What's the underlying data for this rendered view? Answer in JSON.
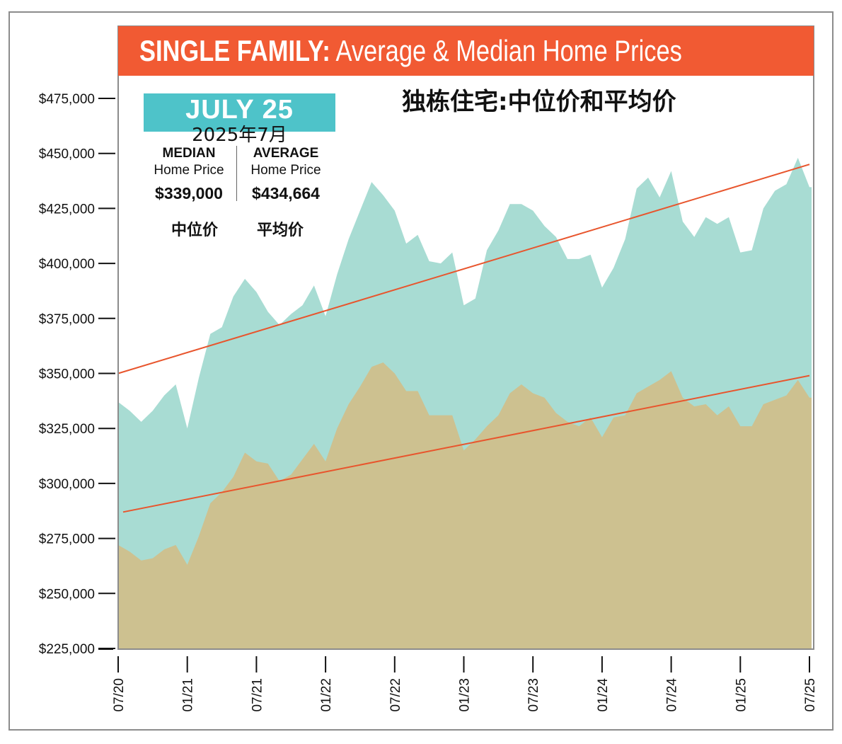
{
  "header": {
    "title_bold": "SINGLE FAMILY:",
    "title_rest": " Average & Median Home Prices",
    "title_cn": "独栋住宅:中位价和平均价"
  },
  "badge": {
    "month": "JULY 25",
    "month_cn": "2025年7月"
  },
  "stats": {
    "median_label": "MEDIAN",
    "median_sub": "Home Price",
    "median_value": "$339,000",
    "median_cn": "中位价",
    "average_label": "AVERAGE",
    "average_sub": "Home Price",
    "average_value": "$434,664",
    "average_cn": "平均价"
  },
  "colors": {
    "title_band": "#f15a33",
    "badge": "#4ec3c9",
    "average_fill": "#a8dcd3",
    "median_fill": "#cdc190",
    "trend_line": "#e8552d"
  },
  "chart_data": {
    "type": "area",
    "title": "SINGLE FAMILY: Average & Median Home Prices",
    "ylim": [
      225000,
      475000
    ],
    "y_ticks": [
      {
        "value": 225000,
        "label": "$225,000"
      },
      {
        "value": 250000,
        "label": "$250,000"
      },
      {
        "value": 275000,
        "label": "$275,000"
      },
      {
        "value": 300000,
        "label": "$300,000"
      },
      {
        "value": 325000,
        "label": "$325,000"
      },
      {
        "value": 350000,
        "label": "$350,000"
      },
      {
        "value": 375000,
        "label": "$375,000"
      },
      {
        "value": 400000,
        "label": "$400,000"
      },
      {
        "value": 425000,
        "label": "$425,000"
      },
      {
        "value": 450000,
        "label": "$450,000"
      },
      {
        "value": 475000,
        "label": "$475,000"
      }
    ],
    "x_ticks": [
      {
        "index": 0,
        "label": "07/20"
      },
      {
        "index": 6,
        "label": "01/21"
      },
      {
        "index": 12,
        "label": "07/21"
      },
      {
        "index": 18,
        "label": "01/22"
      },
      {
        "index": 24,
        "label": "07/22"
      },
      {
        "index": 30,
        "label": "01/23"
      },
      {
        "index": 36,
        "label": "07/23"
      },
      {
        "index": 42,
        "label": "01/24"
      },
      {
        "index": 48,
        "label": "07/24"
      },
      {
        "index": 54,
        "label": "01/25"
      },
      {
        "index": 60,
        "label": "07/25"
      }
    ],
    "series": [
      {
        "name": "Average Home Price",
        "values": [
          337000,
          333000,
          328000,
          333000,
          340000,
          345000,
          325000,
          348000,
          368000,
          371000,
          385000,
          393000,
          387000,
          378000,
          372000,
          377000,
          381000,
          390000,
          376000,
          395000,
          411000,
          424000,
          437000,
          431000,
          424000,
          409000,
          413000,
          401000,
          400000,
          405000,
          381000,
          384000,
          406000,
          415000,
          427000,
          427000,
          424000,
          417000,
          412000,
          402000,
          402000,
          404000,
          389000,
          398000,
          411000,
          434000,
          439000,
          430000,
          442000,
          419000,
          412000,
          421000,
          418000,
          421000,
          405000,
          406000,
          425000,
          433000,
          436000,
          448000,
          434664
        ]
      },
      {
        "name": "Median Home Price",
        "values": [
          272000,
          269000,
          265000,
          266000,
          270000,
          272000,
          263000,
          276000,
          291000,
          296000,
          303000,
          314000,
          310000,
          309000,
          301000,
          304000,
          311000,
          318000,
          310000,
          325000,
          336000,
          344000,
          353000,
          355000,
          350000,
          342000,
          342000,
          331000,
          331000,
          331000,
          315000,
          320000,
          326000,
          331000,
          341000,
          345000,
          341000,
          339000,
          332000,
          328000,
          326000,
          330000,
          321000,
          330000,
          331000,
          341000,
          344000,
          347000,
          351000,
          339000,
          335000,
          336000,
          331000,
          335000,
          326000,
          326000,
          336000,
          338000,
          340000,
          347000,
          339000
        ]
      }
    ],
    "trend_lines": [
      {
        "name": "Average trend",
        "start": 350000,
        "end": 445000
      },
      {
        "name": "Median trend",
        "start": 287000,
        "end": 349000
      }
    ]
  }
}
